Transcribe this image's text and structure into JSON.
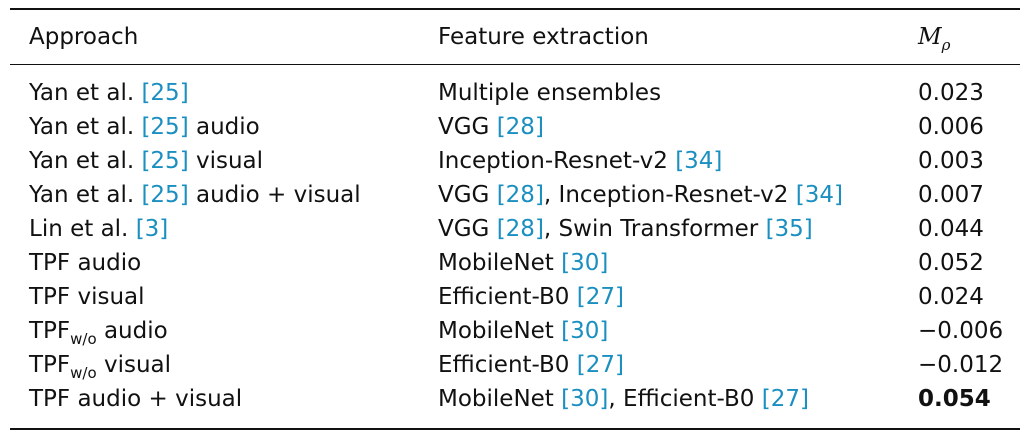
{
  "headers": {
    "approach": "Approach",
    "feature": "Feature extraction",
    "metric_main": "M",
    "metric_sub": "ρ"
  },
  "rows": [
    {
      "approach": [
        {
          "t": "Yan et al. "
        },
        {
          "t": "[25]",
          "ref": true
        }
      ],
      "feature": [
        {
          "t": "Multiple ensembles"
        }
      ],
      "value": "0.023"
    },
    {
      "approach": [
        {
          "t": "Yan et al. "
        },
        {
          "t": "[25]",
          "ref": true
        },
        {
          "t": " audio"
        }
      ],
      "feature": [
        {
          "t": "VGG "
        },
        {
          "t": "[28]",
          "ref": true
        }
      ],
      "value": "0.006"
    },
    {
      "approach": [
        {
          "t": "Yan et al. "
        },
        {
          "t": "[25]",
          "ref": true
        },
        {
          "t": " visual"
        }
      ],
      "feature": [
        {
          "t": "Inception-Resnet-v2 "
        },
        {
          "t": "[34]",
          "ref": true
        }
      ],
      "value": "0.003"
    },
    {
      "approach": [
        {
          "t": "Yan et al. "
        },
        {
          "t": "[25]",
          "ref": true
        },
        {
          "t": " audio + visual"
        }
      ],
      "feature": [
        {
          "t": "VGG "
        },
        {
          "t": "[28]",
          "ref": true
        },
        {
          "t": ", Inception-Resnet-v2 "
        },
        {
          "t": "[34]",
          "ref": true
        }
      ],
      "value": "0.007"
    },
    {
      "approach": [
        {
          "t": "Lin et al. "
        },
        {
          "t": "[3]",
          "ref": true
        }
      ],
      "feature": [
        {
          "t": "VGG "
        },
        {
          "t": "[28]",
          "ref": true
        },
        {
          "t": ", Swin Transformer "
        },
        {
          "t": "[35]",
          "ref": true
        }
      ],
      "value": "0.044"
    },
    {
      "approach": [
        {
          "t": "TPF audio"
        }
      ],
      "feature": [
        {
          "t": "MobileNet "
        },
        {
          "t": "[30]",
          "ref": true
        }
      ],
      "value": "0.052"
    },
    {
      "approach": [
        {
          "t": "TPF visual"
        }
      ],
      "feature": [
        {
          "t": "Efficient-B0 "
        },
        {
          "t": "[27]",
          "ref": true
        }
      ],
      "value": "0.024"
    },
    {
      "approach": [
        {
          "t": "TPF"
        },
        {
          "t": "w/o",
          "sub": true
        },
        {
          "t": " audio"
        }
      ],
      "feature": [
        {
          "t": "MobileNet "
        },
        {
          "t": "[30]",
          "ref": true
        }
      ],
      "value": "−0.006"
    },
    {
      "approach": [
        {
          "t": "TPF"
        },
        {
          "t": "w/o",
          "sub": true
        },
        {
          "t": " visual"
        }
      ],
      "feature": [
        {
          "t": "Efficient-B0 "
        },
        {
          "t": "[27]",
          "ref": true
        }
      ],
      "value": "−0.012"
    },
    {
      "approach": [
        {
          "t": "TPF audio + visual"
        }
      ],
      "feature": [
        {
          "t": "MobileNet "
        },
        {
          "t": "[30]",
          "ref": true
        },
        {
          "t": ", Efficient-B0 "
        },
        {
          "t": "[27]",
          "ref": true
        }
      ],
      "value": "0.054",
      "best": true
    }
  ]
}
